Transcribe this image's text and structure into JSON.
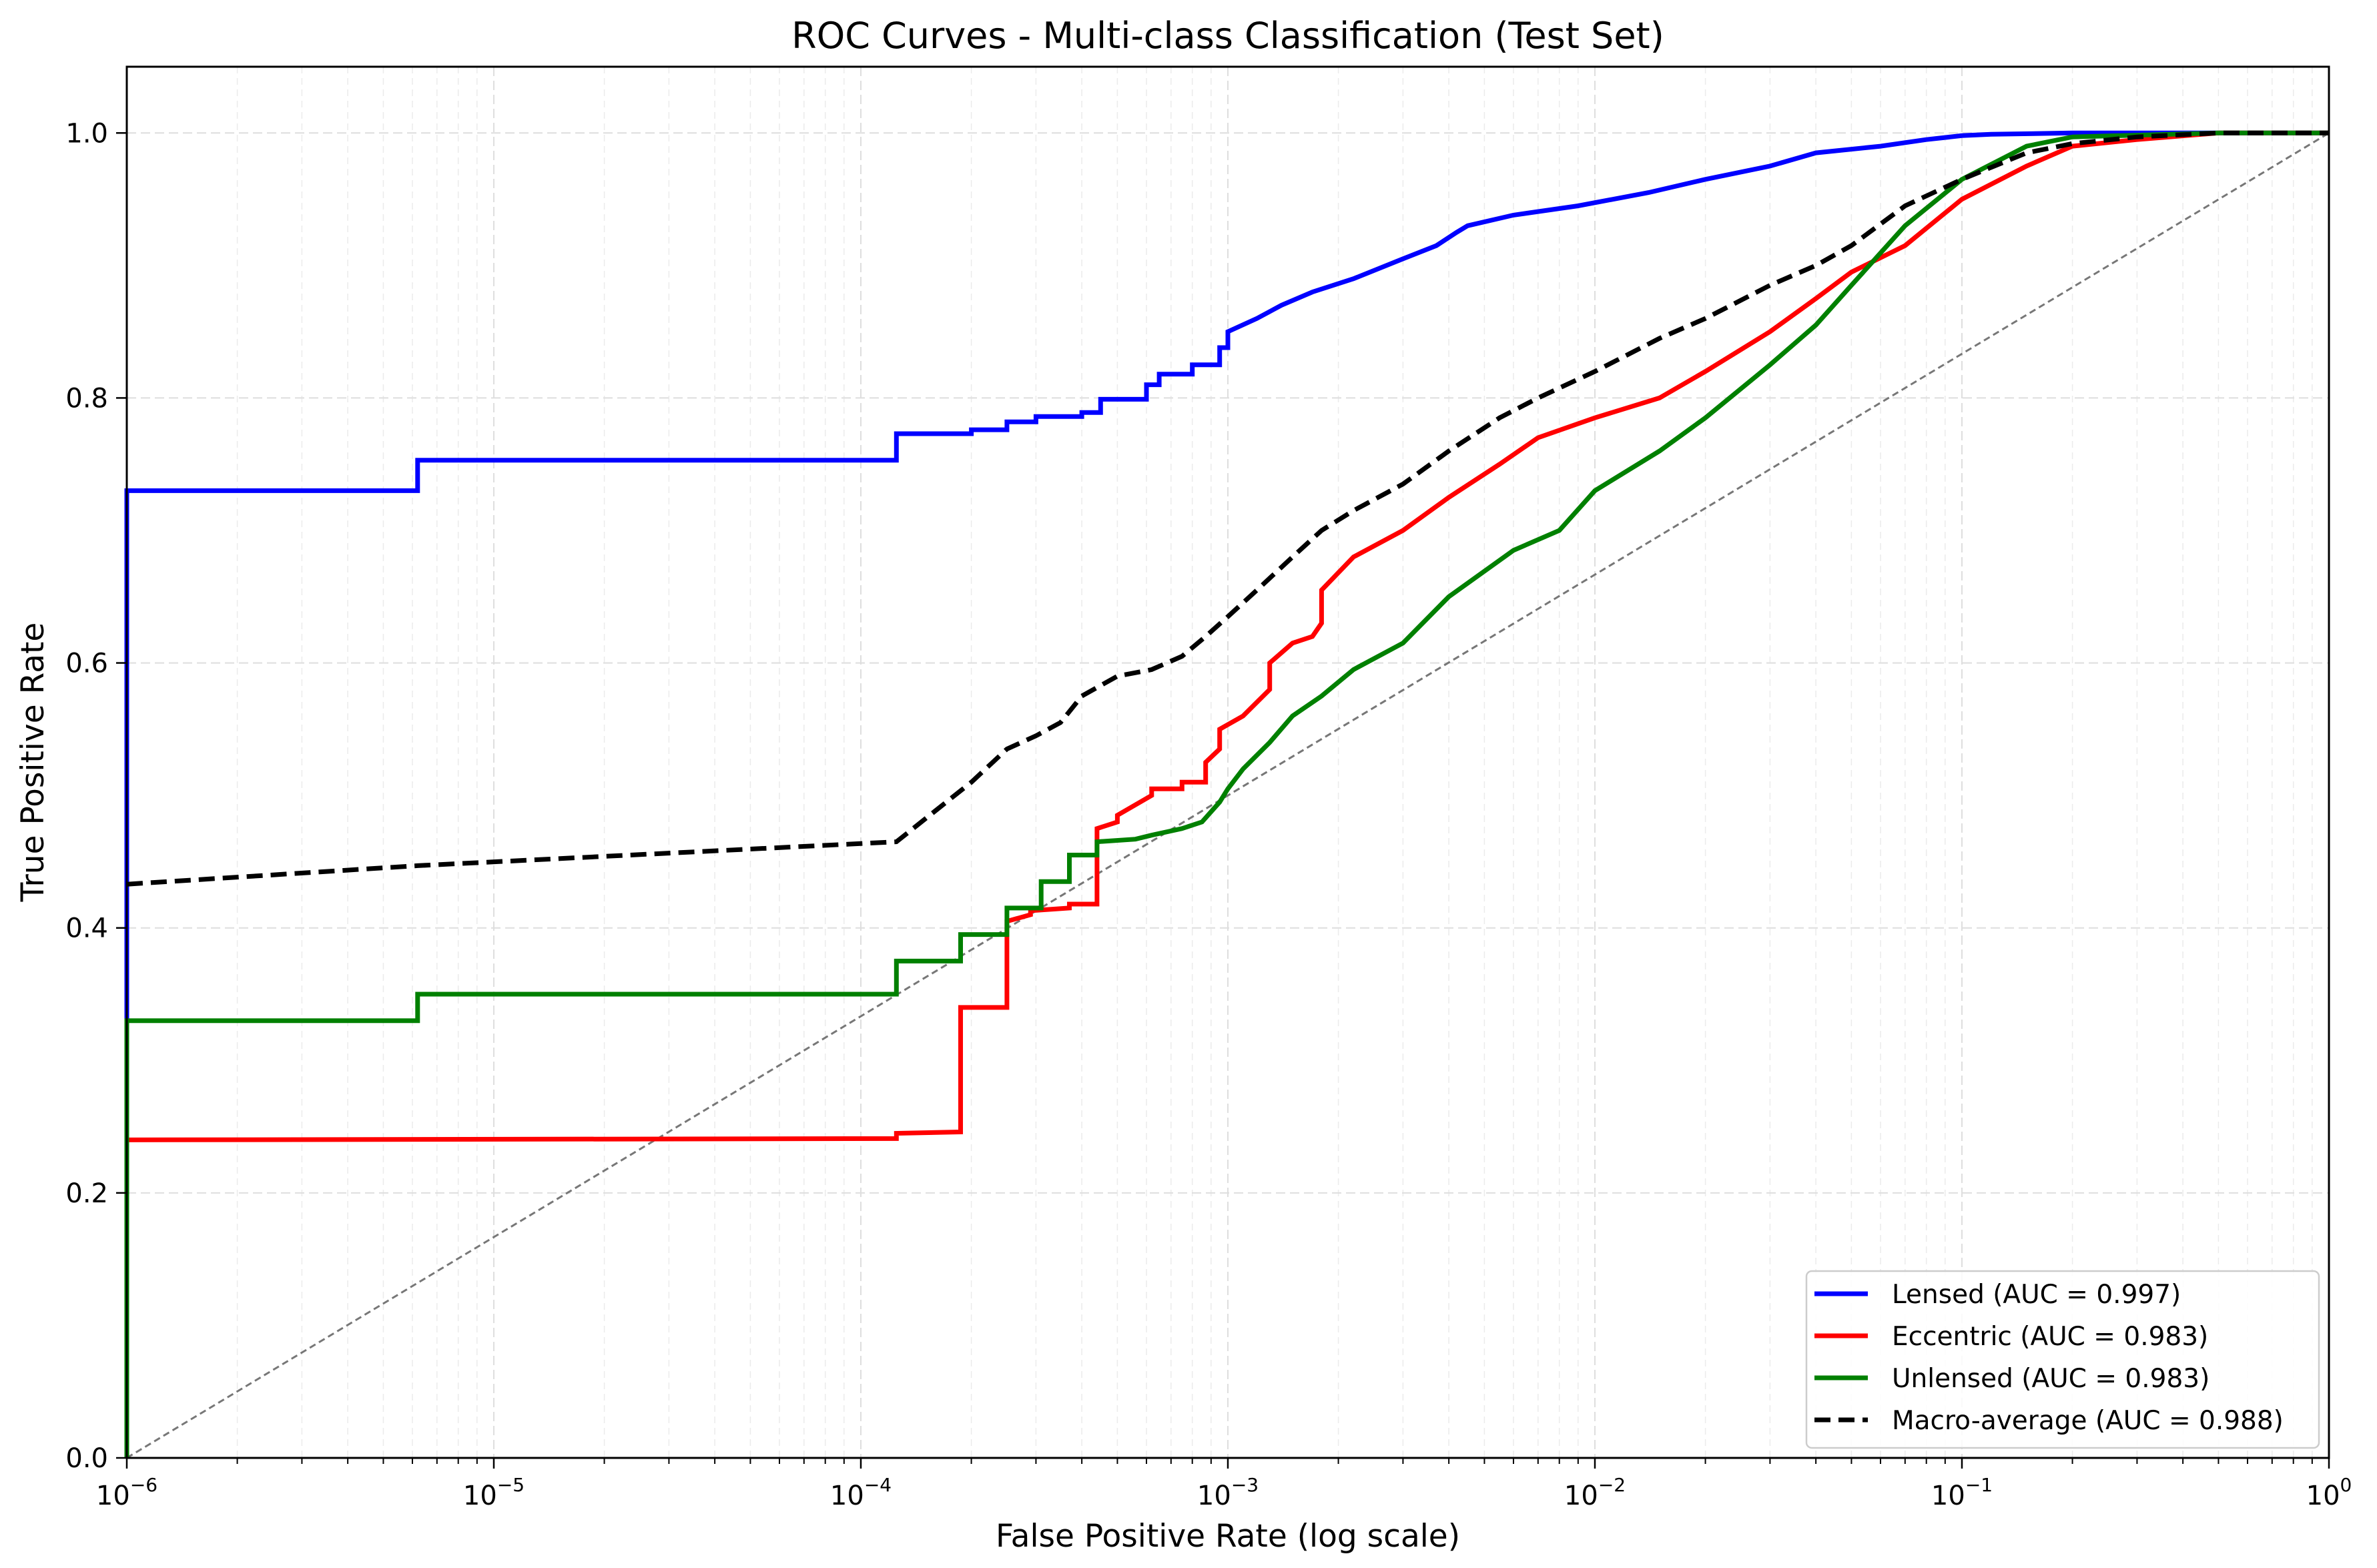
{
  "chart_data": {
    "type": "line",
    "title": "ROC Curves - Multi-class Classification (Test Set)",
    "xlabel": "False Positive Rate (log scale)",
    "ylabel": "True Positive Rate",
    "x_scale": "log",
    "xlim": [
      1e-06,
      1
    ],
    "ylim": [
      0,
      1.05
    ],
    "grid": true,
    "legend_position": "lower-right",
    "x_ticks": [
      {
        "value": 1e-06,
        "base": "10",
        "exp": "−6"
      },
      {
        "value": 1e-05,
        "base": "10",
        "exp": "−5"
      },
      {
        "value": 0.0001,
        "base": "10",
        "exp": "−4"
      },
      {
        "value": 0.001,
        "base": "10",
        "exp": "−3"
      },
      {
        "value": 0.01,
        "base": "10",
        "exp": "−2"
      },
      {
        "value": 0.1,
        "base": "10",
        "exp": "−1"
      },
      {
        "value": 1,
        "base": "10",
        "exp": "0"
      }
    ],
    "y_ticks": [
      {
        "value": 0.0,
        "label": "0.0"
      },
      {
        "value": 0.2,
        "label": "0.2"
      },
      {
        "value": 0.4,
        "label": "0.4"
      },
      {
        "value": 0.6,
        "label": "0.6"
      },
      {
        "value": 0.8,
        "label": "0.8"
      },
      {
        "value": 1.0,
        "label": "1.0"
      }
    ],
    "series": [
      {
        "name": "Lensed (AUC = 0.997)",
        "color": "#0000ff",
        "style": "solid",
        "x": [
          1e-06,
          1e-06,
          1e-06,
          6.2e-06,
          6.2e-06,
          0.000125,
          0.000125,
          0.0002,
          0.0002,
          0.00025,
          0.00025,
          0.0003,
          0.0003,
          0.0004,
          0.0004,
          0.00045,
          0.00045,
          0.0006,
          0.0006,
          0.00065,
          0.00065,
          0.0008,
          0.0008,
          0.00095,
          0.00095,
          0.001,
          0.001,
          0.0012,
          0.0014,
          0.0017,
          0.0022,
          0.003,
          0.0037,
          0.0042,
          0.0045,
          0.006,
          0.009,
          0.014,
          0.02,
          0.03,
          0.04,
          0.06,
          0.08,
          0.1,
          0.12,
          0.2,
          0.5,
          1
        ],
        "y": [
          0,
          0.3,
          0.73,
          0.73,
          0.753,
          0.753,
          0.773,
          0.773,
          0.776,
          0.776,
          0.782,
          0.782,
          0.786,
          0.786,
          0.789,
          0.789,
          0.799,
          0.799,
          0.81,
          0.81,
          0.818,
          0.818,
          0.825,
          0.825,
          0.838,
          0.838,
          0.85,
          0.86,
          0.87,
          0.88,
          0.89,
          0.905,
          0.915,
          0.925,
          0.93,
          0.938,
          0.945,
          0.955,
          0.965,
          0.975,
          0.985,
          0.99,
          0.995,
          0.998,
          0.999,
          1,
          1,
          1
        ]
      },
      {
        "name": "Eccentric (AUC = 0.983)",
        "color": "#ff0000",
        "style": "solid",
        "x": [
          1e-06,
          1e-06,
          0.000125,
          0.000125,
          0.000187,
          0.000187,
          0.00025,
          0.00025,
          0.00029,
          0.00029,
          0.00037,
          0.00037,
          0.00044,
          0.00044,
          0.0005,
          0.0005,
          0.00062,
          0.00062,
          0.00075,
          0.00075,
          0.00087,
          0.00087,
          0.00095,
          0.00095,
          0.0011,
          0.0013,
          0.0013,
          0.0015,
          0.0017,
          0.0018,
          0.0018,
          0.0022,
          0.003,
          0.004,
          0.0055,
          0.007,
          0.01,
          0.015,
          0.02,
          0.03,
          0.04,
          0.05,
          0.07,
          0.1,
          0.15,
          0.2,
          0.3,
          0.5,
          1
        ],
        "y": [
          0,
          0.24,
          0.241,
          0.245,
          0.246,
          0.34,
          0.34,
          0.405,
          0.41,
          0.413,
          0.415,
          0.418,
          0.418,
          0.475,
          0.48,
          0.485,
          0.5,
          0.505,
          0.505,
          0.51,
          0.51,
          0.525,
          0.535,
          0.55,
          0.56,
          0.58,
          0.6,
          0.615,
          0.62,
          0.63,
          0.655,
          0.68,
          0.7,
          0.725,
          0.75,
          0.77,
          0.785,
          0.8,
          0.82,
          0.85,
          0.875,
          0.895,
          0.915,
          0.95,
          0.975,
          0.99,
          0.995,
          1,
          1
        ]
      },
      {
        "name": "Unlensed (AUC = 0.983)",
        "color": "#008000",
        "style": "solid",
        "x": [
          1e-06,
          1e-06,
          6.2e-06,
          6.2e-06,
          0.000125,
          0.000125,
          0.000187,
          0.000187,
          0.00025,
          0.00025,
          0.00031,
          0.00031,
          0.00037,
          0.00037,
          0.00044,
          0.00044,
          0.00056,
          0.00062,
          0.00075,
          0.00085,
          0.00095,
          0.001,
          0.0011,
          0.0013,
          0.0015,
          0.0018,
          0.0022,
          0.003,
          0.004,
          0.006,
          0.008,
          0.01,
          0.015,
          0.02,
          0.03,
          0.04,
          0.05,
          0.07,
          0.1,
          0.15,
          0.2,
          0.5,
          1
        ],
        "y": [
          0,
          0.33,
          0.33,
          0.35,
          0.35,
          0.375,
          0.375,
          0.395,
          0.395,
          0.415,
          0.415,
          0.435,
          0.435,
          0.455,
          0.455,
          0.465,
          0.467,
          0.47,
          0.475,
          0.48,
          0.495,
          0.505,
          0.52,
          0.54,
          0.56,
          0.575,
          0.595,
          0.615,
          0.65,
          0.685,
          0.7,
          0.73,
          0.76,
          0.785,
          0.825,
          0.855,
          0.885,
          0.93,
          0.965,
          0.99,
          0.997,
          1,
          1
        ]
      },
      {
        "name": "Macro-average (AUC = 0.988)",
        "color": "#000000",
        "style": "dashed",
        "x": [
          1e-06,
          6.2e-06,
          0.000125,
          0.0002,
          0.00025,
          0.0003,
          0.00035,
          0.0004,
          0.0005,
          0.00062,
          0.00075,
          0.00087,
          0.001,
          0.0012,
          0.0015,
          0.0018,
          0.0022,
          0.003,
          0.004,
          0.0055,
          0.007,
          0.01,
          0.015,
          0.02,
          0.03,
          0.04,
          0.05,
          0.07,
          0.1,
          0.15,
          0.2,
          0.3,
          0.5,
          1
        ],
        "y": [
          0.433,
          0.447,
          0.465,
          0.51,
          0.535,
          0.545,
          0.555,
          0.575,
          0.59,
          0.595,
          0.605,
          0.62,
          0.635,
          0.655,
          0.68,
          0.7,
          0.715,
          0.735,
          0.76,
          0.785,
          0.8,
          0.82,
          0.845,
          0.86,
          0.885,
          0.9,
          0.915,
          0.945,
          0.965,
          0.985,
          0.992,
          0.997,
          1,
          1
        ]
      },
      {
        "name": "",
        "color": "#777777",
        "style": "diagonal-reference",
        "x": [
          1e-06,
          1
        ],
        "y": [
          0,
          1
        ]
      }
    ],
    "legend": [
      {
        "label": "Lensed (AUC = 0.997)",
        "color": "#0000ff",
        "style": "solid"
      },
      {
        "label": "Eccentric (AUC = 0.983)",
        "color": "#ff0000",
        "style": "solid"
      },
      {
        "label": "Unlensed (AUC = 0.983)",
        "color": "#008000",
        "style": "solid"
      },
      {
        "label": "Macro-average (AUC = 0.988)",
        "color": "#000000",
        "style": "dashed"
      }
    ]
  }
}
